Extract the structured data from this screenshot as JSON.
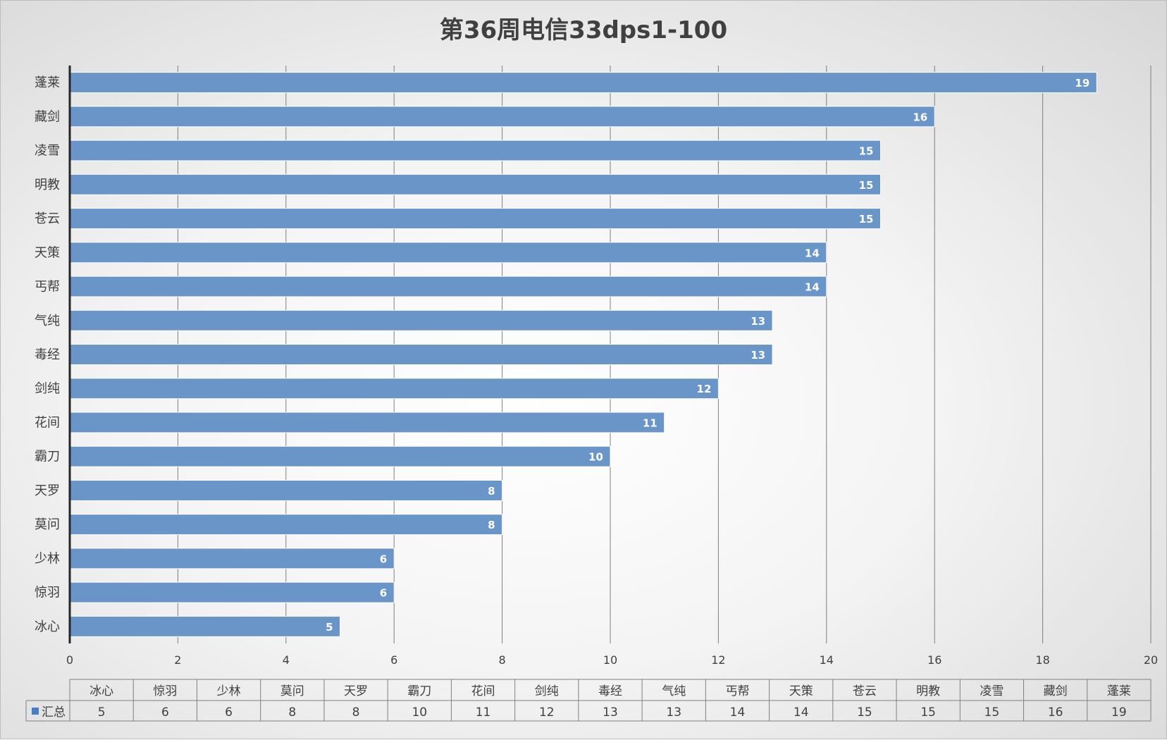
{
  "chart_data": {
    "type": "bar",
    "orientation": "horizontal",
    "title": "第36周电信33dps1-100",
    "categories": [
      "冰心",
      "惊羽",
      "少林",
      "莫问",
      "天罗",
      "霸刀",
      "花间",
      "剑纯",
      "毒经",
      "气纯",
      "丐帮",
      "天策",
      "苍云",
      "明教",
      "凌雪",
      "藏剑",
      "蓬莱"
    ],
    "series": [
      {
        "name": "汇总",
        "values": [
          5,
          6,
          6,
          8,
          8,
          10,
          11,
          12,
          13,
          13,
          14,
          14,
          15,
          15,
          15,
          16,
          19
        ]
      }
    ],
    "xlim": [
      0,
      20
    ],
    "xticks": [
      "0",
      "2",
      "4",
      "6",
      "8",
      "10",
      "12",
      "14",
      "16",
      "18",
      "20"
    ],
    "grid": true,
    "data_labels": true,
    "data_table": true,
    "colors": {
      "bar": "#6a95c9",
      "bar_border": "#ffffff",
      "grid": "#7f7f7f",
      "axis": "#262626",
      "legend_key": "#4a7dc8"
    }
  }
}
